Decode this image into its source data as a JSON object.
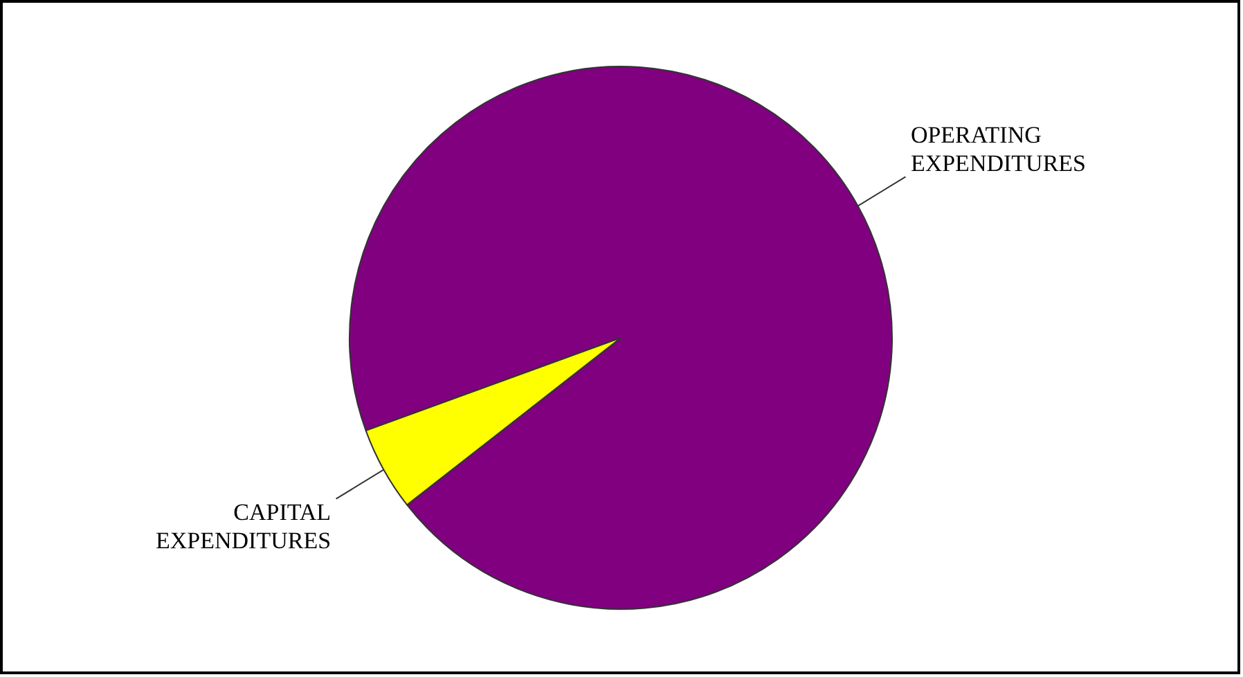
{
  "chart_data": {
    "type": "pie",
    "categories": [
      "OPERATING EXPENDITURES",
      "CAPITAL EXPENDITURES"
    ],
    "values": [
      95,
      5
    ],
    "colors": [
      "#800080",
      "#ffff00"
    ]
  }
}
